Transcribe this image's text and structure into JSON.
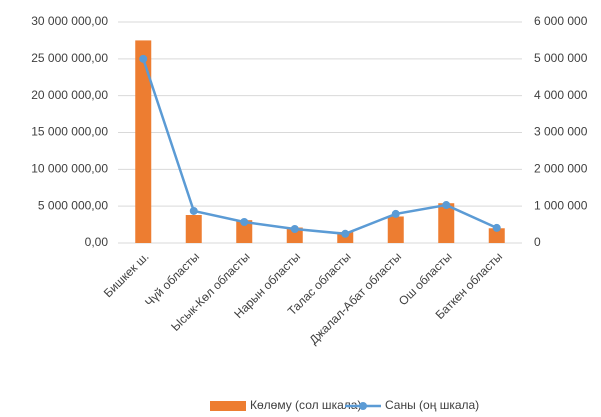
{
  "chart_data": {
    "type": "bar_line",
    "categories": [
      "Бишкек ш.",
      "Чүй областы",
      "Ысык-Көл областы",
      "Нарын областы",
      "Талас областы",
      "Джалал-Абат областы",
      "Ош областы",
      "Баткен областы"
    ],
    "series": [
      {
        "name": "Көлөму (сол шкала)",
        "color": "#ed7d31",
        "kind": "bar",
        "axis": "y",
        "values": [
          27500000,
          3800000,
          3100000,
          2100000,
          1500000,
          3600000,
          5400000,
          2000000
        ]
      },
      {
        "name": "Саны (оң шкала)",
        "color": "#5b9bd5",
        "kind": "line",
        "axis": "y2",
        "values": [
          5000000,
          870000,
          570000,
          380000,
          250000,
          790000,
          1030000,
          410000
        ]
      }
    ],
    "ylim": [
      0,
      30000000
    ],
    "yticks": [
      {
        "value": 0,
        "label": "0,00"
      },
      {
        "value": 5000000,
        "label": "5 000 000,00"
      },
      {
        "value": 10000000,
        "label": "10 000 000,00"
      },
      {
        "value": 15000000,
        "label": "15 000 000,00"
      },
      {
        "value": 20000000,
        "label": "20 000 000,00"
      },
      {
        "value": 25000000,
        "label": "25 000 000,00"
      },
      {
        "value": 30000000,
        "label": "30 000 000,00"
      }
    ],
    "y2lim": [
      0,
      6000000
    ],
    "y2ticks": [
      0,
      {
        "value": 1000000,
        "label": "1 000 000"
      },
      {
        "value": 2000000,
        "label": "2 000 000"
      },
      {
        "value": 3000000,
        "label": "3 000 000"
      },
      {
        "value": 4000000,
        "label": "4 000 000"
      },
      {
        "value": 5000000,
        "label": "5 000 000"
      },
      {
        "value": 6000000,
        "label": "6 000 000"
      }
    ],
    "grid": true
  }
}
